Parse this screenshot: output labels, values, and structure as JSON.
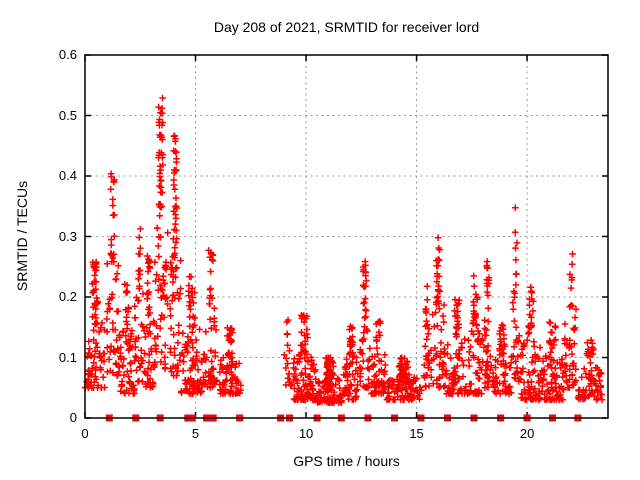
{
  "title": "Day 208 of 2021, SRMTID for receiver lord",
  "axes": {
    "xlabel": "GPS time / hours",
    "ylabel": "SRMTID / TECUs"
  },
  "colors": {
    "marker": "#ff0000",
    "grid": "#999999",
    "axis": "#000000",
    "background": "#ffffff",
    "text": "#000000"
  },
  "chart_data": {
    "type": "scatter",
    "title": "Day 208 of 2021, SRMTID for receiver lord",
    "xlabel": "GPS time / hours",
    "ylabel": "SRMTID / TECUs",
    "xlim": [
      0,
      23.66
    ],
    "ylim": [
      0,
      0.6
    ],
    "grid": true,
    "legend": "none",
    "marker": "plus",
    "marker_color": "#ff0000",
    "x_ticks": [
      {
        "v": 0,
        "label": "0"
      },
      {
        "v": 5,
        "label": "5"
      },
      {
        "v": 10,
        "label": "10"
      },
      {
        "v": 15,
        "label": "15"
      },
      {
        "v": 20,
        "label": "20"
      }
    ],
    "y_ticks": [
      {
        "v": 0.0,
        "label": "0"
      },
      {
        "v": 0.1,
        "label": "0.1"
      },
      {
        "v": 0.2,
        "label": "0.2"
      },
      {
        "v": 0.3,
        "label": "0.3"
      },
      {
        "v": 0.4,
        "label": "0.4"
      },
      {
        "v": 0.5,
        "label": "0.5"
      },
      {
        "v": 0.6,
        "label": "0.6"
      }
    ],
    "seed": 7,
    "clusters": [
      {
        "h0": 0.0,
        "h1": 0.9,
        "n": 95,
        "lo": 0.05,
        "hi": 0.26,
        "bias": 2.2
      },
      {
        "h0": 0.95,
        "h1": 1.55,
        "n": 60,
        "lo": 0.07,
        "hi": 0.41,
        "bias": 1.6
      },
      {
        "h0": 1.55,
        "h1": 2.25,
        "n": 65,
        "lo": 0.04,
        "hi": 0.23,
        "bias": 2.0
      },
      {
        "h0": 2.25,
        "h1": 2.65,
        "n": 40,
        "lo": 0.06,
        "hi": 0.33,
        "bias": 1.7
      },
      {
        "h0": 2.65,
        "h1": 3.1,
        "n": 45,
        "lo": 0.05,
        "hi": 0.28,
        "bias": 1.9
      },
      {
        "h0": 3.1,
        "h1": 3.75,
        "n": 95,
        "lo": 0.08,
        "hi": 0.53,
        "bias": 1.25
      },
      {
        "h0": 3.8,
        "h1": 4.35,
        "n": 75,
        "lo": 0.07,
        "hi": 0.47,
        "bias": 1.35
      },
      {
        "h0": 4.35,
        "h1": 5.3,
        "n": 95,
        "lo": 0.04,
        "hi": 0.24,
        "bias": 2.0
      },
      {
        "h0": 5.35,
        "h1": 6.05,
        "n": 60,
        "lo": 0.05,
        "hi": 0.3,
        "bias": 1.8
      },
      {
        "h0": 6.1,
        "h1": 7.05,
        "n": 85,
        "lo": 0.04,
        "hi": 0.15,
        "bias": 1.8
      },
      {
        "h0": 9.0,
        "h1": 9.35,
        "n": 18,
        "lo": 0.05,
        "hi": 0.17,
        "bias": 1.8
      },
      {
        "h0": 9.4,
        "h1": 10.45,
        "n": 115,
        "lo": 0.03,
        "hi": 0.17,
        "bias": 2.0
      },
      {
        "h0": 10.5,
        "h1": 11.65,
        "n": 125,
        "lo": 0.025,
        "hi": 0.1,
        "bias": 1.6
      },
      {
        "h0": 11.7,
        "h1": 12.35,
        "n": 65,
        "lo": 0.03,
        "hi": 0.16,
        "bias": 1.8
      },
      {
        "h0": 12.4,
        "h1": 12.9,
        "n": 50,
        "lo": 0.05,
        "hi": 0.26,
        "bias": 1.8
      },
      {
        "h0": 12.95,
        "h1": 13.6,
        "n": 60,
        "lo": 0.04,
        "hi": 0.17,
        "bias": 1.9
      },
      {
        "h0": 13.65,
        "h1": 15.25,
        "n": 125,
        "lo": 0.03,
        "hi": 0.1,
        "bias": 1.6
      },
      {
        "h0": 15.3,
        "h1": 15.6,
        "n": 30,
        "lo": 0.05,
        "hi": 0.23,
        "bias": 1.5
      },
      {
        "h0": 15.65,
        "h1": 16.3,
        "n": 65,
        "lo": 0.05,
        "hi": 0.3,
        "bias": 1.5
      },
      {
        "h0": 16.35,
        "h1": 17.25,
        "n": 80,
        "lo": 0.04,
        "hi": 0.21,
        "bias": 2.2
      },
      {
        "h0": 17.3,
        "h1": 18.0,
        "n": 70,
        "lo": 0.04,
        "hi": 0.24,
        "bias": 2.0
      },
      {
        "h0": 18.05,
        "h1": 18.4,
        "n": 42,
        "lo": 0.05,
        "hi": 0.26,
        "bias": 1.6
      },
      {
        "h0": 18.45,
        "h1": 19.3,
        "n": 70,
        "lo": 0.04,
        "hi": 0.16,
        "bias": 1.9
      },
      {
        "h0": 19.35,
        "h1": 19.65,
        "n": 35,
        "lo": 0.06,
        "hi": 0.35,
        "bias": 1.4
      },
      {
        "h0": 19.7,
        "h1": 20.6,
        "n": 85,
        "lo": 0.03,
        "hi": 0.22,
        "bias": 2.3
      },
      {
        "h0": 20.65,
        "h1": 21.65,
        "n": 85,
        "lo": 0.03,
        "hi": 0.17,
        "bias": 2.1
      },
      {
        "h0": 21.7,
        "h1": 22.25,
        "n": 48,
        "lo": 0.05,
        "hi": 0.29,
        "bias": 1.6
      },
      {
        "h0": 22.3,
        "h1": 23.4,
        "n": 75,
        "lo": 0.03,
        "hi": 0.13,
        "bias": 1.7
      }
    ],
    "zero_marker_hours": [
      1.1,
      2.3,
      3.4,
      4.65,
      4.85,
      5.5,
      5.8,
      7.0,
      8.85,
      9.25,
      10.5,
      11.6,
      12.8,
      14.0,
      15.2,
      16.4,
      17.6,
      18.8,
      20.0,
      21.15,
      22.3
    ]
  }
}
